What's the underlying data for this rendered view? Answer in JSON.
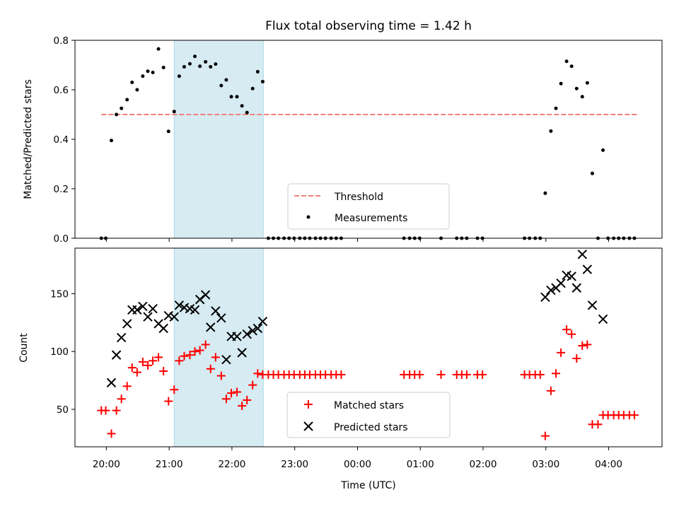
{
  "chart_data": [
    {
      "type": "scatter",
      "title": "Flux total observing time = 1.42 h",
      "xlabel": "",
      "ylabel": "Matched/Predicted stars",
      "ylim": [
        0,
        0.8
      ],
      "yticks": [
        "0.0",
        "0.2",
        "0.4",
        "0.6",
        "0.8"
      ],
      "xlim": [
        19.5,
        28.85
      ],
      "grid": false,
      "legend_position": "lower-center",
      "shaded_span": {
        "x0": 21.08,
        "x1": 22.5,
        "color": "#add8e6"
      },
      "threshold": {
        "name": "Threshold",
        "value": 0.5,
        "x0": 19.92,
        "x1": 28.45,
        "color": "#f08080"
      },
      "measurements_name": "Measurements",
      "series": [
        {
          "name": "Measurements",
          "points": [
            [
              19.92,
              0
            ],
            [
              19.99,
              0
            ],
            [
              20.08,
              0.395
            ],
            [
              20.16,
              0.5
            ],
            [
              20.24,
              0.525
            ],
            [
              20.33,
              0.56
            ],
            [
              20.41,
              0.63
            ],
            [
              20.49,
              0.6
            ],
            [
              20.58,
              0.655
            ],
            [
              20.66,
              0.675
            ],
            [
              20.74,
              0.67
            ],
            [
              20.83,
              0.765
            ],
            [
              20.91,
              0.69
            ],
            [
              20.99,
              0.432
            ],
            [
              21.08,
              0.512
            ],
            [
              21.16,
              0.655
            ],
            [
              21.24,
              0.693
            ],
            [
              21.33,
              0.705
            ],
            [
              21.41,
              0.735
            ],
            [
              21.49,
              0.695
            ],
            [
              21.58,
              0.713
            ],
            [
              21.66,
              0.693
            ],
            [
              21.74,
              0.704
            ],
            [
              21.83,
              0.617
            ],
            [
              21.91,
              0.64
            ],
            [
              21.99,
              0.572
            ],
            [
              22.08,
              0.572
            ],
            [
              22.16,
              0.535
            ],
            [
              22.24,
              0.508
            ],
            [
              22.33,
              0.605
            ],
            [
              22.41,
              0.673
            ],
            [
              22.49,
              0.633
            ],
            [
              22.58,
              0
            ],
            [
              22.66,
              0
            ],
            [
              22.74,
              0
            ],
            [
              22.83,
              0
            ],
            [
              22.91,
              0
            ],
            [
              22.99,
              0
            ],
            [
              23.08,
              0
            ],
            [
              23.16,
              0
            ],
            [
              23.24,
              0
            ],
            [
              23.33,
              0
            ],
            [
              23.41,
              0
            ],
            [
              23.49,
              0
            ],
            [
              23.58,
              0
            ],
            [
              23.66,
              0
            ],
            [
              23.74,
              0
            ],
            [
              24.74,
              0
            ],
            [
              24.83,
              0
            ],
            [
              24.91,
              0
            ],
            [
              24.99,
              0
            ],
            [
              25.33,
              0
            ],
            [
              25.58,
              0
            ],
            [
              25.66,
              0
            ],
            [
              25.74,
              0
            ],
            [
              25.91,
              0
            ],
            [
              25.99,
              0
            ],
            [
              26.66,
              0
            ],
            [
              26.74,
              0
            ],
            [
              26.83,
              0
            ],
            [
              26.91,
              0
            ],
            [
              26.99,
              0.182
            ],
            [
              27.08,
              0.433
            ],
            [
              27.16,
              0.525
            ],
            [
              27.24,
              0.625
            ],
            [
              27.33,
              0.715
            ],
            [
              27.41,
              0.695
            ],
            [
              27.49,
              0.605
            ],
            [
              27.58,
              0.572
            ],
            [
              27.66,
              0.628
            ],
            [
              27.74,
              0.262
            ],
            [
              27.83,
              0
            ],
            [
              27.91,
              0.356
            ],
            [
              27.99,
              0
            ],
            [
              28.08,
              0
            ],
            [
              28.16,
              0
            ],
            [
              28.24,
              0
            ],
            [
              28.33,
              0
            ],
            [
              28.41,
              0
            ]
          ]
        }
      ]
    },
    {
      "type": "scatter",
      "title": "",
      "xlabel": "Time (UTC)",
      "ylabel": "Count",
      "ylim": [
        17.6,
        189.4
      ],
      "yticks": [
        "50",
        "100",
        "150"
      ],
      "xlim": [
        19.5,
        28.85
      ],
      "xticks": [
        "20:00",
        "21:00",
        "22:00",
        "23:00",
        "00:00",
        "01:00",
        "02:00",
        "03:00",
        "04:00"
      ],
      "grid": false,
      "legend_position": "lower-center",
      "shaded_span": {
        "x0": 21.08,
        "x1": 22.5,
        "color": "#add8e6"
      },
      "series": [
        {
          "name": "Matched stars",
          "marker": "plus",
          "color": "#ff0000",
          "points": [
            [
              19.92,
              49
            ],
            [
              19.99,
              49
            ],
            [
              20.08,
              29
            ],
            [
              20.16,
              49
            ],
            [
              20.24,
              59
            ],
            [
              20.33,
              70
            ],
            [
              20.41,
              86
            ],
            [
              20.49,
              82
            ],
            [
              20.58,
              91
            ],
            [
              20.66,
              88
            ],
            [
              20.74,
              92
            ],
            [
              20.83,
              95
            ],
            [
              20.91,
              83
            ],
            [
              20.99,
              57
            ],
            [
              21.08,
              67
            ],
            [
              21.16,
              92
            ],
            [
              21.24,
              96
            ],
            [
              21.33,
              97
            ],
            [
              21.41,
              100
            ],
            [
              21.49,
              101
            ],
            [
              21.58,
              106
            ],
            [
              21.66,
              85
            ],
            [
              21.74,
              95
            ],
            [
              21.83,
              79
            ],
            [
              21.91,
              59
            ],
            [
              21.99,
              64
            ],
            [
              22.08,
              65
            ],
            [
              22.16,
              53
            ],
            [
              22.24,
              58
            ],
            [
              22.33,
              71
            ],
            [
              22.41,
              81
            ],
            [
              22.49,
              80
            ],
            [
              22.58,
              80
            ],
            [
              22.66,
              80
            ],
            [
              22.74,
              80
            ],
            [
              22.83,
              80
            ],
            [
              22.91,
              80
            ],
            [
              22.99,
              80
            ],
            [
              23.08,
              80
            ],
            [
              23.16,
              80
            ],
            [
              23.24,
              80
            ],
            [
              23.33,
              80
            ],
            [
              23.41,
              80
            ],
            [
              23.49,
              80
            ],
            [
              23.58,
              80
            ],
            [
              23.66,
              80
            ],
            [
              23.74,
              80
            ],
            [
              24.74,
              80
            ],
            [
              24.83,
              80
            ],
            [
              24.91,
              80
            ],
            [
              24.99,
              80
            ],
            [
              25.33,
              80
            ],
            [
              25.58,
              80
            ],
            [
              25.66,
              80
            ],
            [
              25.74,
              80
            ],
            [
              25.91,
              80
            ],
            [
              25.99,
              80
            ],
            [
              26.66,
              80
            ],
            [
              26.74,
              80
            ],
            [
              26.83,
              80
            ],
            [
              26.91,
              80
            ],
            [
              26.99,
              27
            ],
            [
              27.08,
              66
            ],
            [
              27.16,
              81
            ],
            [
              27.24,
              99
            ],
            [
              27.33,
              119
            ],
            [
              27.41,
              115
            ],
            [
              27.49,
              94
            ],
            [
              27.58,
              105
            ],
            [
              27.66,
              106
            ],
            [
              27.74,
              37
            ],
            [
              27.83,
              37
            ],
            [
              27.91,
              45
            ],
            [
              27.99,
              45
            ],
            [
              28.08,
              45
            ],
            [
              28.16,
              45
            ],
            [
              28.24,
              45
            ],
            [
              28.33,
              45
            ],
            [
              28.41,
              45
            ]
          ]
        },
        {
          "name": "Predicted stars",
          "marker": "x",
          "color": "#000000",
          "points": [
            [
              20.08,
              73
            ],
            [
              20.16,
              97
            ],
            [
              20.24,
              112
            ],
            [
              20.33,
              124
            ],
            [
              20.41,
              136
            ],
            [
              20.49,
              136
            ],
            [
              20.58,
              139
            ],
            [
              20.66,
              130
            ],
            [
              20.74,
              137
            ],
            [
              20.83,
              124
            ],
            [
              20.91,
              120
            ],
            [
              20.99,
              131
            ],
            [
              21.08,
              130
            ],
            [
              21.16,
              140
            ],
            [
              21.24,
              138
            ],
            [
              21.33,
              137
            ],
            [
              21.41,
              136
            ],
            [
              21.49,
              145
            ],
            [
              21.58,
              149
            ],
            [
              21.66,
              121
            ],
            [
              21.74,
              135
            ],
            [
              21.83,
              129
            ],
            [
              21.91,
              93
            ],
            [
              21.99,
              113
            ],
            [
              22.08,
              113
            ],
            [
              22.16,
              99
            ],
            [
              22.24,
              115
            ],
            [
              22.33,
              118
            ],
            [
              22.41,
              120
            ],
            [
              22.49,
              126
            ],
            [
              26.99,
              147
            ],
            [
              27.08,
              153
            ],
            [
              27.16,
              155
            ],
            [
              27.24,
              159
            ],
            [
              27.33,
              166
            ],
            [
              27.41,
              165
            ],
            [
              27.49,
              155
            ],
            [
              27.58,
              184
            ],
            [
              27.66,
              171
            ],
            [
              27.74,
              140
            ],
            [
              27.91,
              128
            ]
          ]
        }
      ]
    }
  ]
}
